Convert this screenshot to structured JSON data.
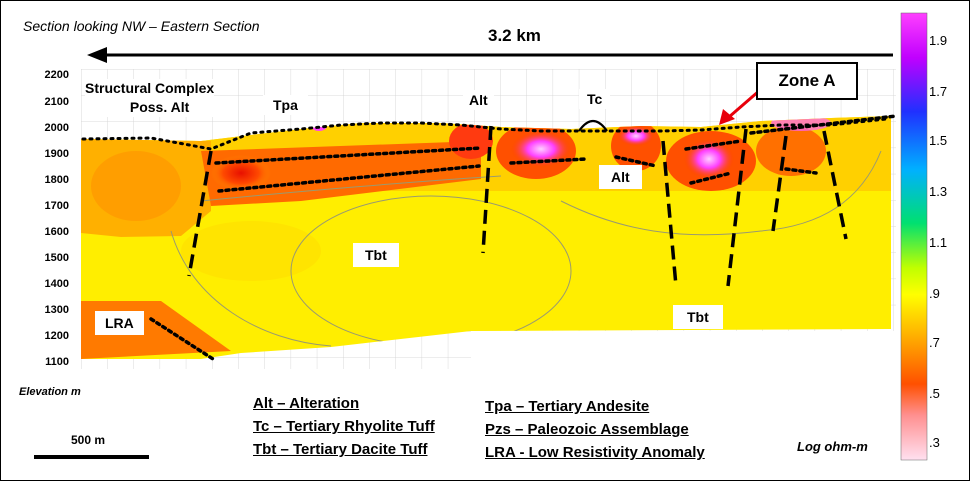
{
  "title": "Section looking NW – Eastern Section",
  "scale_arrow_label": "3.2 km",
  "elevation_axis": {
    "label": "Elevation m",
    "ticks": [
      "2200",
      "2100",
      "2000",
      "1900",
      "1800",
      "1700",
      "1600",
      "1500",
      "1400",
      "1300",
      "1200",
      "1100"
    ]
  },
  "colorbar": {
    "label": "Log ohm-m",
    "ticks": [
      "1.9",
      "1.7",
      "1.5",
      "1.3",
      "1.1",
      ".9",
      ".7",
      ".5",
      ".3"
    ]
  },
  "unit_labels": {
    "structural_complex": "Structural Complex",
    "poss_alt": "Poss. Alt",
    "tpa": "Tpa",
    "alt_top": "Alt",
    "tc": "Tc",
    "zone_a": "Zone A",
    "alt_mid": "Alt",
    "tbt_left": "Tbt",
    "tbt_right": "Tbt",
    "lra": "LRA"
  },
  "legend": {
    "col1": [
      "Alt – Alteration",
      "Tc – Tertiary Rhyolite Tuff",
      "Tbt – Tertiary Dacite Tuff"
    ],
    "col2": [
      "Tpa – Tertiary Andesite",
      "Pzs – Paleozoic Assemblage",
      "LRA - Low Resistivity Anomaly"
    ]
  },
  "scale_bar_label": "500 m",
  "colors": {
    "high_resistivity": "#ff40ff",
    "mid_resistivity": "#ffff00",
    "low_resistivity": "#ff5500",
    "zone_arrow": "#e8000b"
  }
}
